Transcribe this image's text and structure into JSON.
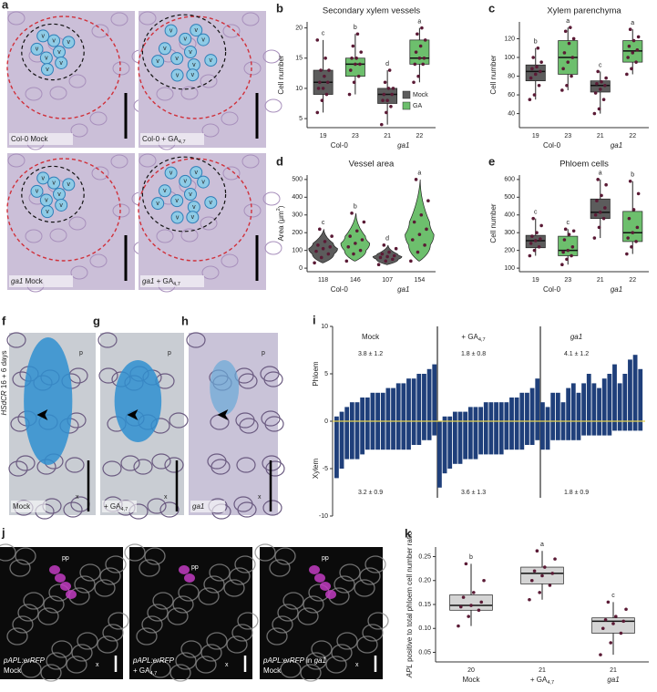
{
  "chart_data": [
    {
      "type": "box",
      "letter": "b",
      "title": "Secondary xylem vessels",
      "ylabel": [
        {
          "t": "Cell number"
        }
      ],
      "ylim": [
        3.5,
        21
      ],
      "yticks": [
        5,
        10,
        15,
        20
      ],
      "legend": true,
      "categories": [
        [
          {
            "t": "Col-0"
          }
        ],
        [
          {
            "t": "ga1",
            "i": true
          }
        ]
      ],
      "series": [
        {
          "name": "Mock",
          "color": "#5c5c5c",
          "boxes": [
            {
              "min": 6,
              "q1": 9,
              "median": 11,
              "q3": 13,
              "max": 18,
              "n": 19,
              "letter": "c",
              "points": [
                6,
                8,
                9,
                10,
                10,
                11,
                11,
                12,
                13,
                13,
                15,
                18
              ]
            },
            {
              "min": 4,
              "q1": 7.5,
              "median": 9,
              "q3": 10,
              "max": 13,
              "n": 21,
              "letter": "d",
              "points": [
                4,
                6,
                7,
                8,
                8,
                9,
                9,
                10,
                10,
                11,
                13
              ]
            }
          ]
        },
        {
          "name": "GA",
          "color": "#6dbf6d",
          "boxes": [
            {
              "min": 9,
              "q1": 12,
              "median": 14,
              "q3": 15,
              "max": 19,
              "n": 23,
              "letter": "b",
              "points": [
                9,
                11,
                12,
                13,
                14,
                14,
                15,
                15,
                16,
                17,
                19
              ]
            },
            {
              "min": 11,
              "q1": 14,
              "median": 15,
              "q3": 18,
              "max": 20,
              "n": 22,
              "letter": "a",
              "points": [
                11,
                12,
                14,
                14,
                15,
                15,
                16,
                17,
                18,
                19,
                20
              ]
            }
          ]
        }
      ]
    },
    {
      "type": "box",
      "letter": "c",
      "title": "Xylem parenchyma",
      "ylabel": [
        {
          "t": "Cell number"
        }
      ],
      "ylim": [
        25,
        138
      ],
      "yticks": [
        40,
        60,
        80,
        100,
        120
      ],
      "legend": false,
      "categories": [
        [
          {
            "t": "Col-0"
          }
        ],
        [
          {
            "t": "ga1",
            "i": true
          }
        ]
      ],
      "series": [
        {
          "name": "Mock",
          "color": "#5c5c5c",
          "boxes": [
            {
              "min": 55,
              "q1": 75,
              "median": 85,
              "q3": 92,
              "max": 110,
              "n": 19,
              "letter": "b",
              "points": [
                55,
                60,
                70,
                78,
                82,
                85,
                88,
                90,
                95,
                100,
                110
              ]
            },
            {
              "min": 40,
              "q1": 63,
              "median": 70,
              "q3": 75,
              "max": 85,
              "n": 21,
              "letter": "c",
              "points": [
                40,
                45,
                55,
                62,
                66,
                70,
                72,
                74,
                78,
                85
              ]
            }
          ]
        },
        {
          "name": "GA",
          "color": "#6dbf6d",
          "boxes": [
            {
              "min": 65,
              "q1": 82,
              "median": 100,
              "q3": 118,
              "max": 132,
              "n": 23,
              "letter": "a",
              "points": [
                65,
                70,
                80,
                88,
                95,
                100,
                105,
                115,
                120,
                128,
                132
              ]
            },
            {
              "min": 82,
              "q1": 95,
              "median": 107,
              "q3": 118,
              "max": 130,
              "n": 22,
              "letter": "a",
              "points": [
                82,
                88,
                95,
                100,
                105,
                108,
                112,
                118,
                122,
                130
              ]
            }
          ]
        }
      ]
    },
    {
      "type": "violin",
      "letter": "d",
      "title": "Vessel area",
      "ylabel": [
        {
          "t": "Area (μm"
        },
        {
          "t": "2",
          "sup": true
        },
        {
          "t": ")"
        }
      ],
      "ylim": [
        -20,
        525
      ],
      "yticks": [
        0,
        100,
        200,
        300,
        400,
        500
      ],
      "legend": false,
      "categories": [
        [
          {
            "t": "Col-0"
          }
        ],
        [
          {
            "t": "ga1",
            "i": true
          }
        ]
      ],
      "series": [
        {
          "name": "Mock",
          "color": "#5c5c5c",
          "boxes": [
            {
              "min": 30,
              "q1": 80,
              "median": 110,
              "q3": 140,
              "max": 220,
              "n": 118,
              "letter": "c",
              "points": [
                30,
                60,
                80,
                95,
                110,
                120,
                130,
                150,
                180,
                220
              ]
            },
            {
              "min": 20,
              "q1": 50,
              "median": 65,
              "q3": 80,
              "max": 130,
              "n": 107,
              "letter": "d",
              "points": [
                20,
                40,
                50,
                60,
                65,
                70,
                80,
                90,
                110,
                130
              ]
            }
          ]
        },
        {
          "name": "GA",
          "color": "#6dbf6d",
          "boxes": [
            {
              "min": 40,
              "q1": 100,
              "median": 140,
              "q3": 180,
              "max": 310,
              "n": 146,
              "letter": "b",
              "points": [
                40,
                80,
                100,
                120,
                140,
                160,
                180,
                210,
                260,
                310
              ]
            },
            {
              "min": 40,
              "q1": 130,
              "median": 190,
              "q3": 260,
              "max": 500,
              "n": 154,
              "letter": "a",
              "points": [
                40,
                90,
                130,
                160,
                190,
                220,
                260,
                300,
                380,
                500
              ]
            }
          ]
        }
      ]
    },
    {
      "type": "box",
      "letter": "e",
      "title": "Phloem cells",
      "ylabel": [
        {
          "t": "Cell number"
        }
      ],
      "ylim": [
        80,
        625
      ],
      "yticks": [
        100,
        200,
        300,
        400,
        500,
        600
      ],
      "legend": false,
      "categories": [
        [
          {
            "t": "Col-0"
          }
        ],
        [
          {
            "t": "ga1",
            "i": true
          }
        ]
      ],
      "series": [
        {
          "name": "Mock",
          "color": "#5c5c5c",
          "boxes": [
            {
              "min": 170,
              "q1": 215,
              "median": 255,
              "q3": 285,
              "max": 380,
              "n": 19,
              "letter": "c",
              "points": [
                170,
                200,
                220,
                240,
                255,
                265,
                280,
                300,
                340,
                380
              ]
            },
            {
              "min": 270,
              "q1": 380,
              "median": 415,
              "q3": 490,
              "max": 600,
              "n": 21,
              "letter": "a",
              "points": [
                270,
                330,
                380,
                400,
                415,
                440,
                480,
                510,
                570,
                600
              ]
            }
          ]
        },
        {
          "name": "GA",
          "color": "#6dbf6d",
          "boxes": [
            {
              "min": 120,
              "q1": 170,
              "median": 200,
              "q3": 280,
              "max": 320,
              "n": 23,
              "letter": "c",
              "points": [
                120,
                150,
                170,
                190,
                200,
                220,
                260,
                290,
                310,
                320
              ]
            },
            {
              "min": 180,
              "q1": 250,
              "median": 300,
              "q3": 420,
              "max": 590,
              "n": 22,
              "letter": "b",
              "points": [
                180,
                220,
                250,
                270,
                300,
                330,
                380,
                430,
                520,
                590
              ]
            }
          ]
        }
      ]
    },
    {
      "type": "profile",
      "letter": "i",
      "ylabel_top": "Phloem",
      "ylabel_bottom": "Xylem",
      "color": "#1f3f7a",
      "baseline_color": "#e8d44d",
      "ylim": [
        -10,
        10
      ],
      "yticks": [
        -10,
        -5,
        0,
        5,
        10
      ],
      "groups": [
        {
          "name": [
            {
              "t": "Mock"
            }
          ],
          "phloem_stat": "3.8 ± 1.2",
          "xylem_stat": "3.2 ± 0.9",
          "phloem": [
            0.5,
            1,
            1.5,
            2,
            2,
            2.5,
            2.5,
            3,
            3,
            3,
            3.5,
            3.5,
            4,
            4,
            4.5,
            4.5,
            5,
            5,
            5.5,
            6
          ],
          "xylem": [
            -6,
            -5,
            -4,
            -4,
            -4,
            -3.5,
            -3,
            -3,
            -3,
            -3,
            -3,
            -3,
            -3,
            -3,
            -3,
            -2.5,
            -2.5,
            -2,
            -2,
            -1.5
          ]
        },
        {
          "name": [
            {
              "t": "+ GA"
            },
            {
              "t": "4,7",
              "sub": true
            }
          ],
          "phloem_stat": "1.8 ± 0.8",
          "xylem_stat": "3.6 ± 1.3",
          "phloem": [
            0,
            0.5,
            0.5,
            1,
            1,
            1,
            1.5,
            1.5,
            1.5,
            2,
            2,
            2,
            2,
            2,
            2.5,
            2.5,
            3,
            3,
            3.5,
            4.5
          ],
          "xylem": [
            -7,
            -5.5,
            -5,
            -4.5,
            -4.5,
            -4,
            -4,
            -4,
            -3.5,
            -3.5,
            -3.5,
            -3.5,
            -3.5,
            -3,
            -3,
            -3,
            -3,
            -2.5,
            -2.5,
            -2
          ]
        },
        {
          "name": [
            {
              "t": "ga1",
              "i": true
            }
          ],
          "phloem_stat": "4.1 ± 1.2",
          "xylem_stat": "1.8 ± 0.9",
          "phloem": [
            2,
            1.5,
            3,
            3,
            2,
            3.5,
            4,
            3,
            4,
            5,
            4,
            3.5,
            4.5,
            5,
            6,
            4,
            5,
            6.5,
            7,
            5.5
          ],
          "xylem": [
            -3,
            -3,
            -2,
            -2,
            -2,
            -2,
            -2,
            -2,
            -1.5,
            -1.5,
            -1.5,
            -1.5,
            -1.5,
            -1.5,
            -1,
            -1,
            -1,
            -1,
            -1,
            -1
          ]
        }
      ]
    },
    {
      "type": "box",
      "letter": "k",
      "ylabel": [
        {
          "t": "APL",
          "i": true
        },
        {
          "t": " positive to total phloem cell number ratio"
        }
      ],
      "ylim": [
        0.03,
        0.27
      ],
      "yticks": [
        0.05,
        {
          "value": 0.1,
          "label": "0.10"
        },
        0.15,
        {
          "value": 0.2,
          "label": "0.20"
        },
        0.25
      ],
      "legend": false,
      "categories": [
        [
          {
            "t": "Mock"
          }
        ],
        [
          {
            "t": "+ GA"
          },
          {
            "t": "4,7",
            "sub": true
          }
        ],
        [
          {
            "t": "ga1",
            "i": true
          }
        ]
      ],
      "series": [
        {
          "name": "APL ratio",
          "color": "#d4d4d4",
          "boxes": [
            {
              "min": 0.105,
              "q1": 0.138,
              "median": 0.148,
              "q3": 0.17,
              "max": 0.235,
              "n": 20,
              "letter": "b",
              "points": [
                0.105,
                0.125,
                0.138,
                0.145,
                0.148,
                0.155,
                0.165,
                0.175,
                0.2,
                0.235
              ]
            },
            {
              "min": 0.16,
              "q1": 0.193,
              "median": 0.215,
              "q3": 0.228,
              "max": 0.262,
              "n": 21,
              "letter": "a",
              "points": [
                0.16,
                0.175,
                0.19,
                0.2,
                0.21,
                0.215,
                0.22,
                0.228,
                0.245,
                0.262
              ]
            },
            {
              "min": 0.045,
              "q1": 0.09,
              "median": 0.115,
              "q3": 0.122,
              "max": 0.155,
              "n": 21,
              "letter": "c",
              "points": [
                0.045,
                0.07,
                0.09,
                0.1,
                0.11,
                0.115,
                0.118,
                0.125,
                0.14,
                0.155
              ]
            }
          ]
        }
      ]
    }
  ],
  "images": {
    "a": {
      "letter": "a",
      "vessel": "v",
      "labels": [
        [
          {
            "t": "Col-0 Mock"
          }
        ],
        [
          {
            "t": "Col-0 + GA"
          },
          {
            "t": "4,7",
            "sub": true
          }
        ],
        [
          {
            "t": "ga1",
            "i": true
          },
          {
            "t": " Mock"
          }
        ],
        [
          {
            "t": "ga1",
            "i": true
          },
          {
            "t": " + GA"
          },
          {
            "t": "4,7",
            "sub": true
          }
        ]
      ]
    },
    "fgh": {
      "letters": [
        "f",
        "g",
        "h"
      ],
      "side_label": [
        {
          "t": "HSdCR",
          "i": true
        },
        {
          "t": " 16 + 6 days"
        }
      ],
      "labels": [
        [
          {
            "t": "Mock"
          }
        ],
        [
          {
            "t": "+ GA"
          },
          {
            "t": "4,7",
            "sub": true
          }
        ],
        [
          {
            "t": "ga1",
            "i": true
          }
        ]
      ],
      "phloem_mark": "p",
      "xylem_mark": "x"
    },
    "j": {
      "letter": "j",
      "pp": "pp",
      "x": "x",
      "labels": [
        [
          [
            {
              "t": "pAPL:erRFP",
              "i": true
            }
          ],
          [
            {
              "t": "Mock"
            }
          ]
        ],
        [
          [
            {
              "t": "pAPL:erRFP",
              "i": true
            }
          ],
          [
            {
              "t": "+ GA"
            },
            {
              "t": "4,7",
              "sub": true
            }
          ]
        ],
        [
          [
            {
              "t": "pAPL:erRFP",
              "i": true
            },
            {
              "t": " in "
            },
            {
              "t": "ga1",
              "i": true
            }
          ],
          [
            {
              "t": "Mock"
            }
          ]
        ]
      ]
    }
  }
}
